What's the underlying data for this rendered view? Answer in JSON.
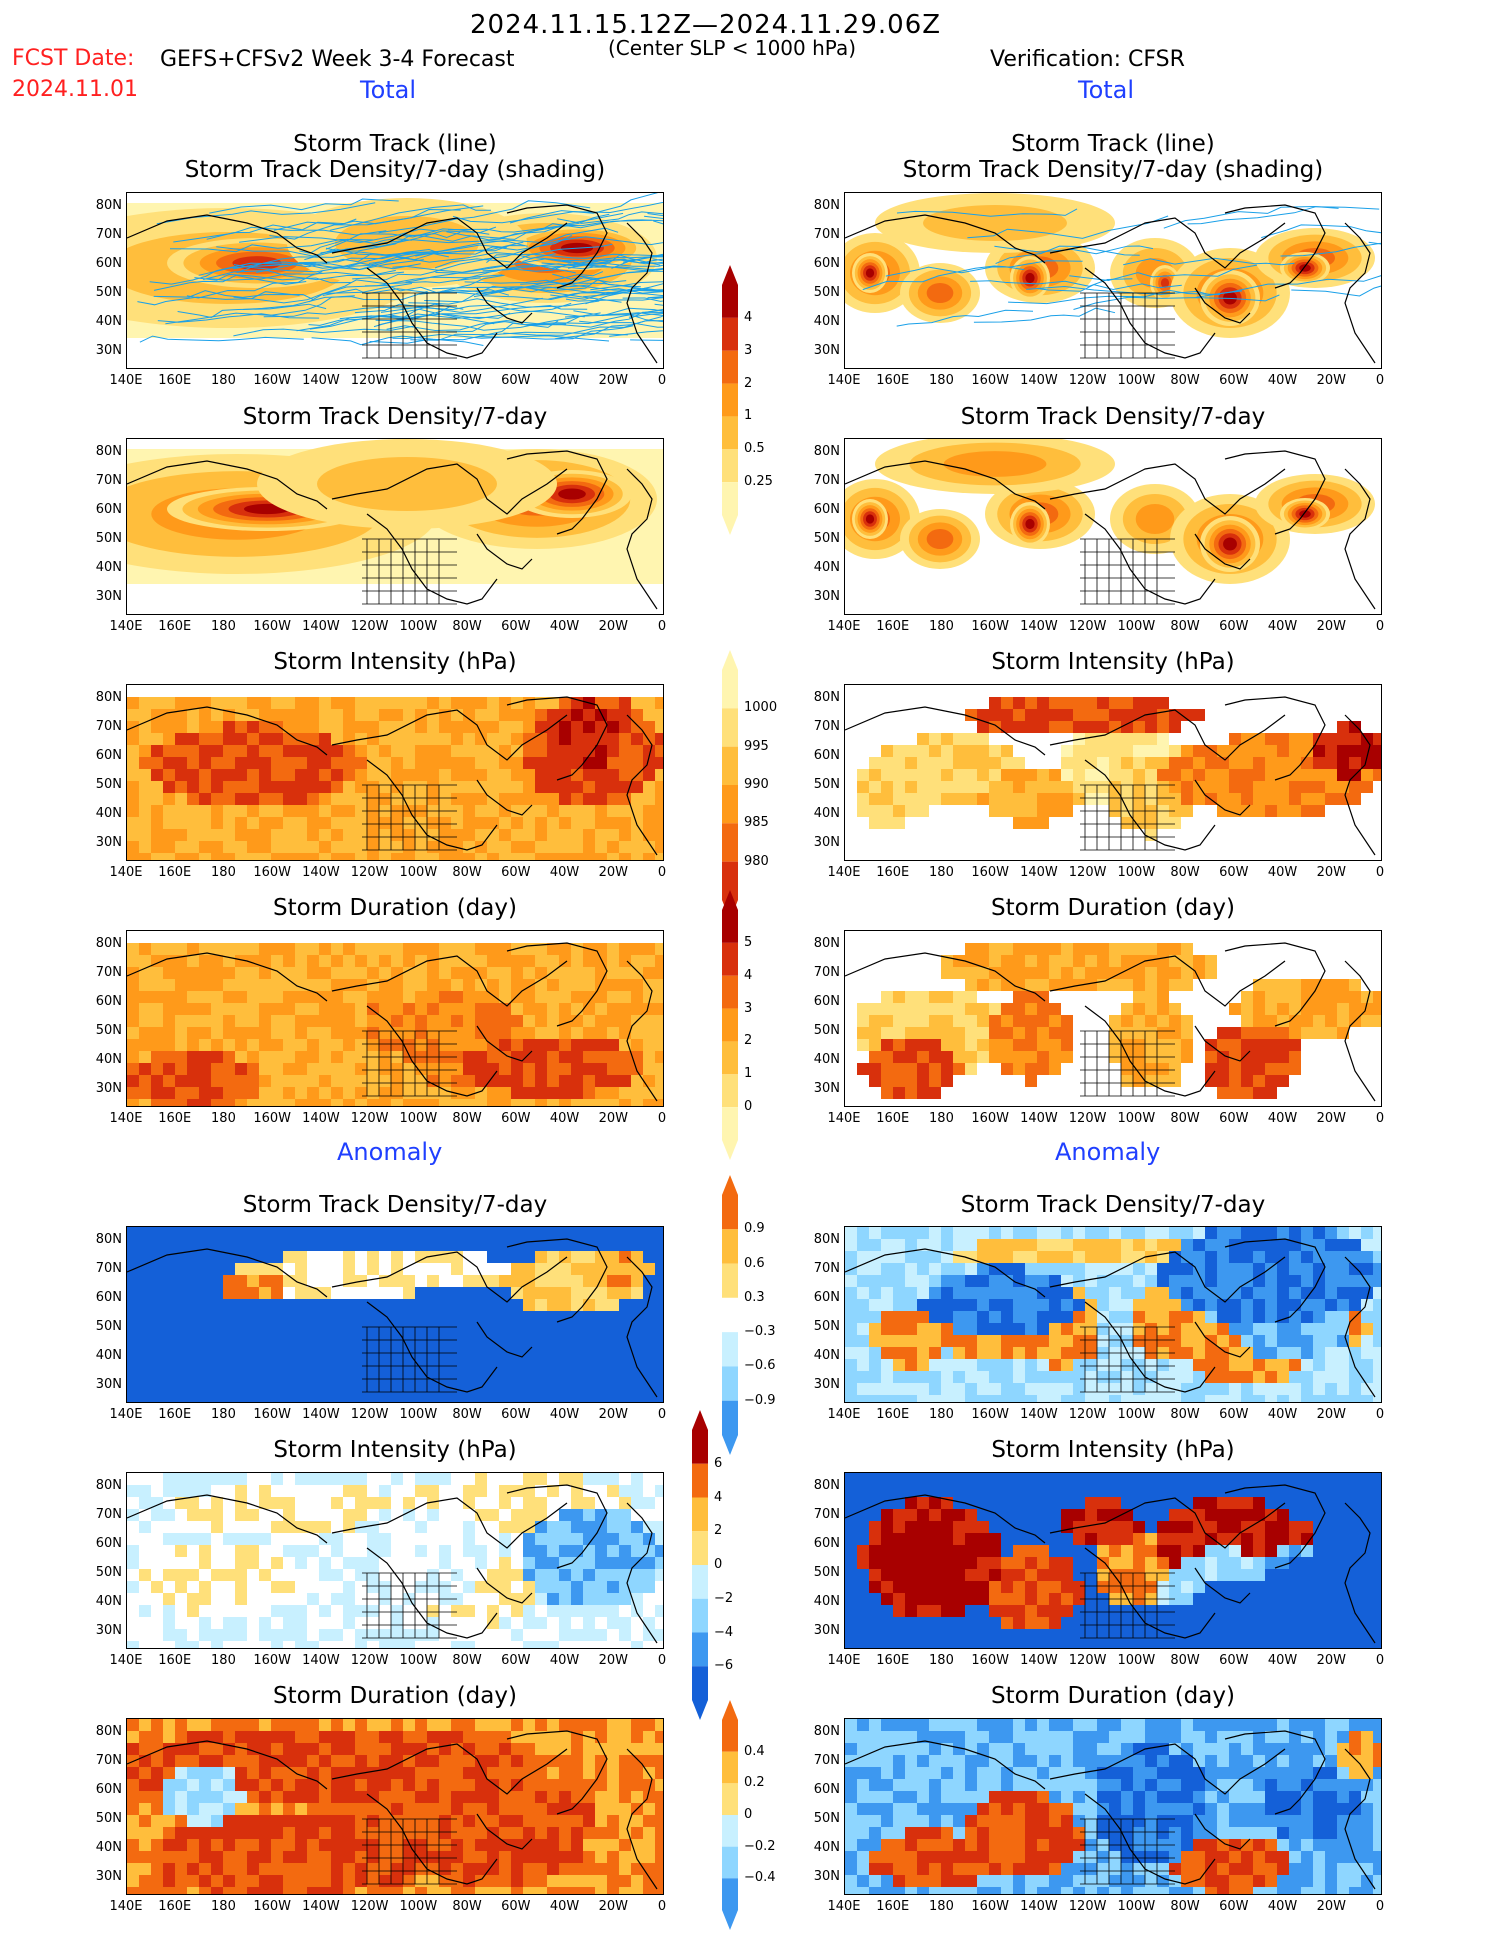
{
  "header": {
    "date_range": "2024.11.15.12Z—2024.11.29.06Z",
    "fcst_label": "FCST Date:",
    "fcst_date": "2024.11.01",
    "model": "GEFS+CFSv2 Week 3-4 Forecast",
    "criterion": "(Center SLP < 1000 hPa)",
    "verification": "Verification: CFSR"
  },
  "columns": {
    "left_total": "Total",
    "right_total": "Total",
    "left_anom": "Anomaly",
    "right_anom": "Anomaly"
  },
  "panels": {
    "p1_title_a": "Storm Track (line)",
    "p1_title_b": "Storm Track Density/7-day (shading)",
    "p2_title": "Storm Track Density/7-day",
    "p3_title": "Storm Intensity (hPa)",
    "p4_title": "Storm Duration (day)",
    "p5_title": "Storm Track Density/7-day",
    "p6_title": "Storm Intensity (hPa)",
    "p7_title": "Storm Duration (day)"
  },
  "axes": {
    "lat_ticks": [
      "80N",
      "70N",
      "60N",
      "50N",
      "40N",
      "30N"
    ],
    "lon_ticks": [
      "140E",
      "160E",
      "180",
      "160W",
      "140W",
      "120W",
      "100W",
      "80W",
      "60W",
      "40W",
      "20W",
      "0"
    ]
  },
  "colorbars": {
    "density": [
      "4",
      "3",
      "2",
      "1",
      "0.5",
      "0.25"
    ],
    "intensity": [
      "1000",
      "995",
      "990",
      "985",
      "980"
    ],
    "duration": [
      "5",
      "4",
      "3",
      "2",
      "1",
      "0"
    ],
    "density_anom": [
      "0.9",
      "0.6",
      "0.3",
      "−0.3",
      "−0.6",
      "−0.9"
    ],
    "intensity_anom": [
      "6",
      "4",
      "2",
      "0",
      "−2",
      "−4",
      "−6"
    ],
    "duration_anom": [
      "0.4",
      "0.2",
      "0",
      "−0.2",
      "−0.4"
    ]
  },
  "colors": {
    "warm": [
      "#fff5b0",
      "#ffe07a",
      "#ffbe3c",
      "#ff9a1a",
      "#f36a10",
      "#d8300c",
      "#a80000"
    ],
    "cool": [
      "#c8f0ff",
      "#8ed6ff",
      "#3d98f0",
      "#1460d8"
    ],
    "track_line": "#1aa0e8"
  }
}
